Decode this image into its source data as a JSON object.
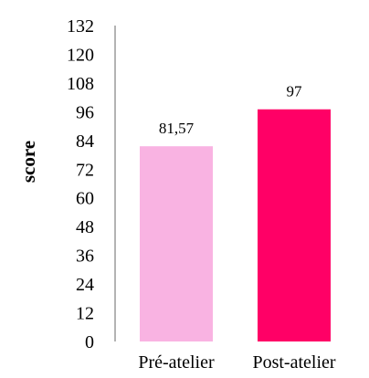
{
  "chart_data": {
    "type": "bar",
    "title": "",
    "xlabel": "",
    "ylabel": "score",
    "categories": [
      "Pré-atelier",
      "Post-atelier"
    ],
    "values": [
      81.57,
      97
    ],
    "data_labels": [
      "81,57",
      "97"
    ],
    "bar_colors": [
      "#f9b3e2",
      "#ff0066"
    ],
    "ylim": [
      0,
      132
    ],
    "yticks": [
      0,
      12,
      24,
      36,
      48,
      60,
      72,
      84,
      96,
      108,
      120,
      132
    ],
    "grid": false,
    "legend": "none"
  }
}
